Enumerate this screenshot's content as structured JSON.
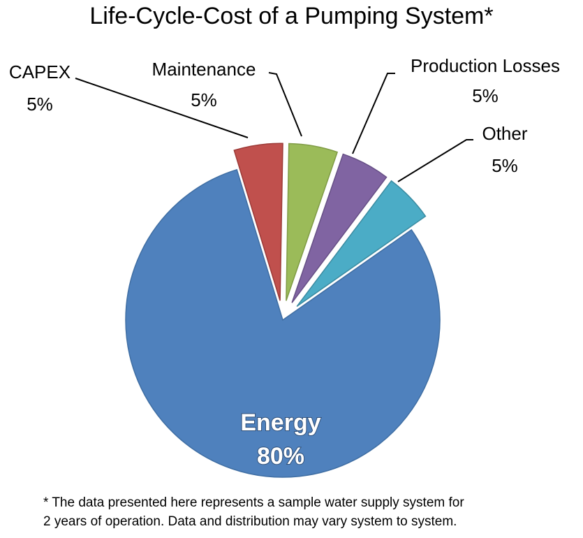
{
  "chart_data": {
    "type": "pie",
    "title": "Life-Cycle-Cost of a Pumping System*",
    "slices": [
      {
        "label": "Energy",
        "value": 80,
        "value_label": "80%",
        "color": "#4f81bd",
        "edge": "#3f6ea3",
        "exploded": false
      },
      {
        "label": "CAPEX",
        "value": 5,
        "value_label": "5%",
        "color": "#c0504d",
        "edge": "#9c3a37",
        "exploded": true
      },
      {
        "label": "Maintenance",
        "value": 5,
        "value_label": "5%",
        "color": "#9bbb59",
        "edge": "#7f9b45",
        "exploded": true
      },
      {
        "label": "Production Losses",
        "value": 5,
        "value_label": "5%",
        "color": "#8064a2",
        "edge": "#664f85",
        "exploded": true
      },
      {
        "label": "Other",
        "value": 5,
        "value_label": "5%",
        "color": "#4bacc6",
        "edge": "#3a8ba1",
        "exploded": true
      }
    ],
    "footnote": [
      "* The data presented here represents a sample water supply system for",
      "2 years of operation. Data and distribution may vary system to system."
    ]
  }
}
